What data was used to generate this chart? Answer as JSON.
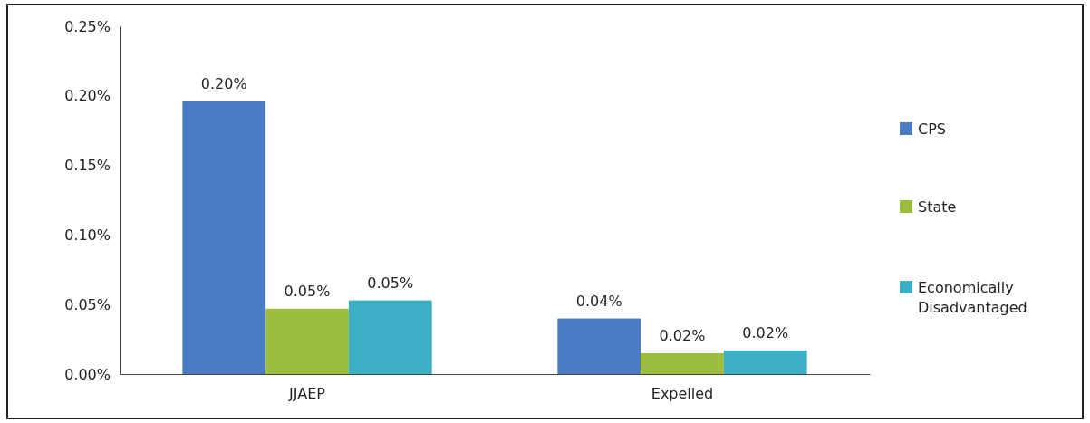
{
  "chart_data": {
    "type": "bar",
    "categories": [
      "JJAEP",
      "Expelled"
    ],
    "series": [
      {
        "name": "CPS",
        "color": "#4a7cc4",
        "values": [
          0.196,
          0.04
        ],
        "value_labels": [
          "0.20%",
          "0.04%"
        ]
      },
      {
        "name": "State",
        "color": "#9dbd3e",
        "values": [
          0.047,
          0.015
        ],
        "value_labels": [
          "0.05%",
          "0.02%"
        ]
      },
      {
        "name": "Economically Disadvantaged",
        "color": "#3cafc6",
        "values": [
          0.053,
          0.017
        ],
        "value_labels": [
          "0.05%",
          "0.02%"
        ]
      }
    ],
    "ylim": [
      0,
      0.25
    ],
    "yticks": [
      {
        "value": 0,
        "label": "0.00%"
      },
      {
        "value": 0.05,
        "label": "0.05%"
      },
      {
        "value": 0.1,
        "label": "0.10%"
      },
      {
        "value": 0.15,
        "label": "0.15%"
      },
      {
        "value": 0.2,
        "label": "0.20%"
      },
      {
        "value": 0.25,
        "label": "0.25%"
      }
    ],
    "grid": false,
    "legend": "right"
  }
}
